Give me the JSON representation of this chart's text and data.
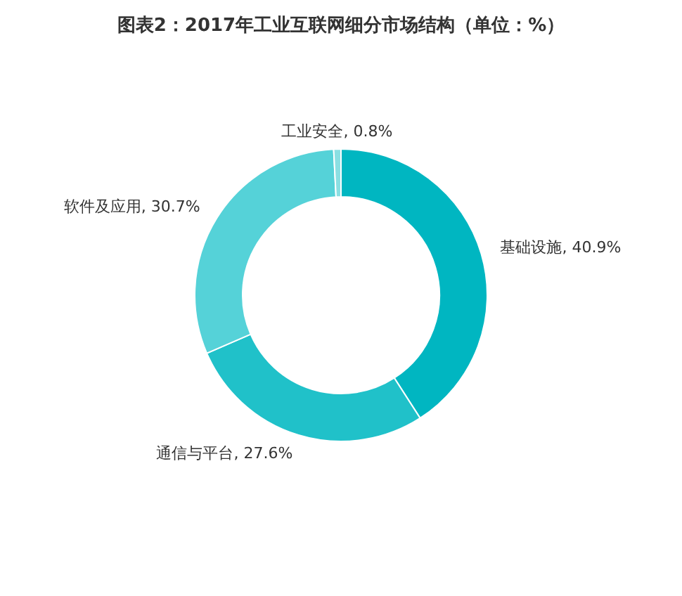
{
  "chart_data": {
    "type": "donut",
    "title": "图表2：2017年工业互联网细分市场结构（单位：%）",
    "categories": [
      "基础设施",
      "通信与平台",
      "软件及应用",
      "工业安全"
    ],
    "values": [
      40.9,
      27.6,
      30.7,
      0.8
    ],
    "colors": [
      "#00b6c1",
      "#20c1c9",
      "#55d2d8",
      "#8adfe2"
    ],
    "value_labels": [
      "40.9%",
      "27.6%",
      "30.7%",
      "0.8%"
    ],
    "legend": false
  }
}
